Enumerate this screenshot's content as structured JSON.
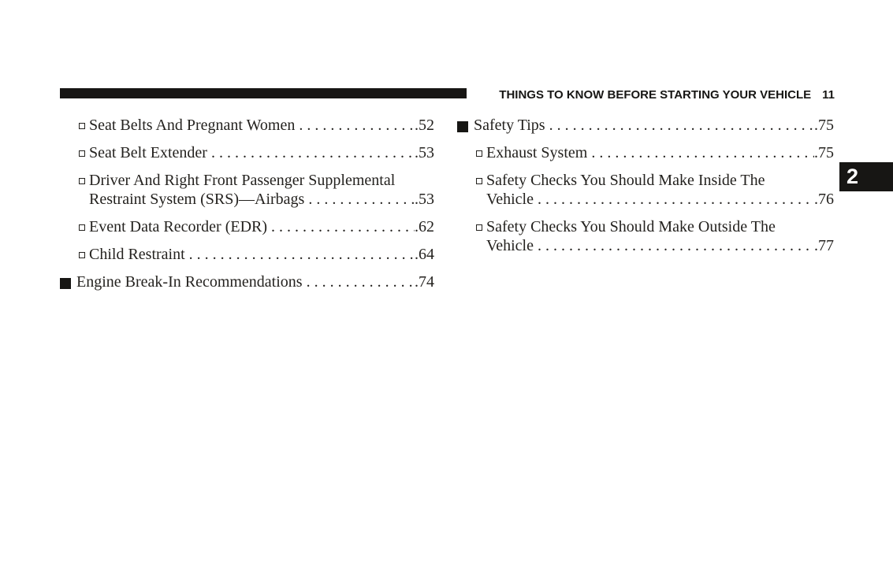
{
  "header": {
    "title": "THINGS TO KNOW BEFORE STARTING YOUR VEHICLE",
    "page_number": "11"
  },
  "chapter_tab": {
    "label": "2"
  },
  "leader_dots": ". . . . . . . . . . . . . . . . . . . . . . . . . . . . . . . . . . . . . . . . . . . . .",
  "toc": {
    "left": [
      {
        "level": 2,
        "text": "Seat Belts And Pregnant Women",
        "page": ".52"
      },
      {
        "level": 2,
        "text": "Seat Belt Extender",
        "page": ".53"
      },
      {
        "level": 2,
        "text": "Driver And Right Front Passenger Supplemental",
        "text2": "Restraint System (SRS)—Airbags",
        "page": ".53"
      },
      {
        "level": 2,
        "text": "Event Data Recorder (EDR)",
        "page": ".62"
      },
      {
        "level": 2,
        "text": "Child Restraint",
        "page": ".64"
      },
      {
        "level": 1,
        "text": "Engine Break-In Recommendations",
        "page": ".74"
      }
    ],
    "right": [
      {
        "level": 1,
        "text": "Safety Tips",
        "page": ".75"
      },
      {
        "level": 2,
        "text": "Exhaust System",
        "page": ".75"
      },
      {
        "level": 2,
        "text": "Safety Checks You Should Make Inside The",
        "text2": "Vehicle",
        "page": ".76"
      },
      {
        "level": 2,
        "text": "Safety Checks You Should Make Outside The",
        "text2": "Vehicle",
        "page": ".77"
      }
    ]
  },
  "colors": {
    "ink": "#171614",
    "background": "#ffffff"
  }
}
